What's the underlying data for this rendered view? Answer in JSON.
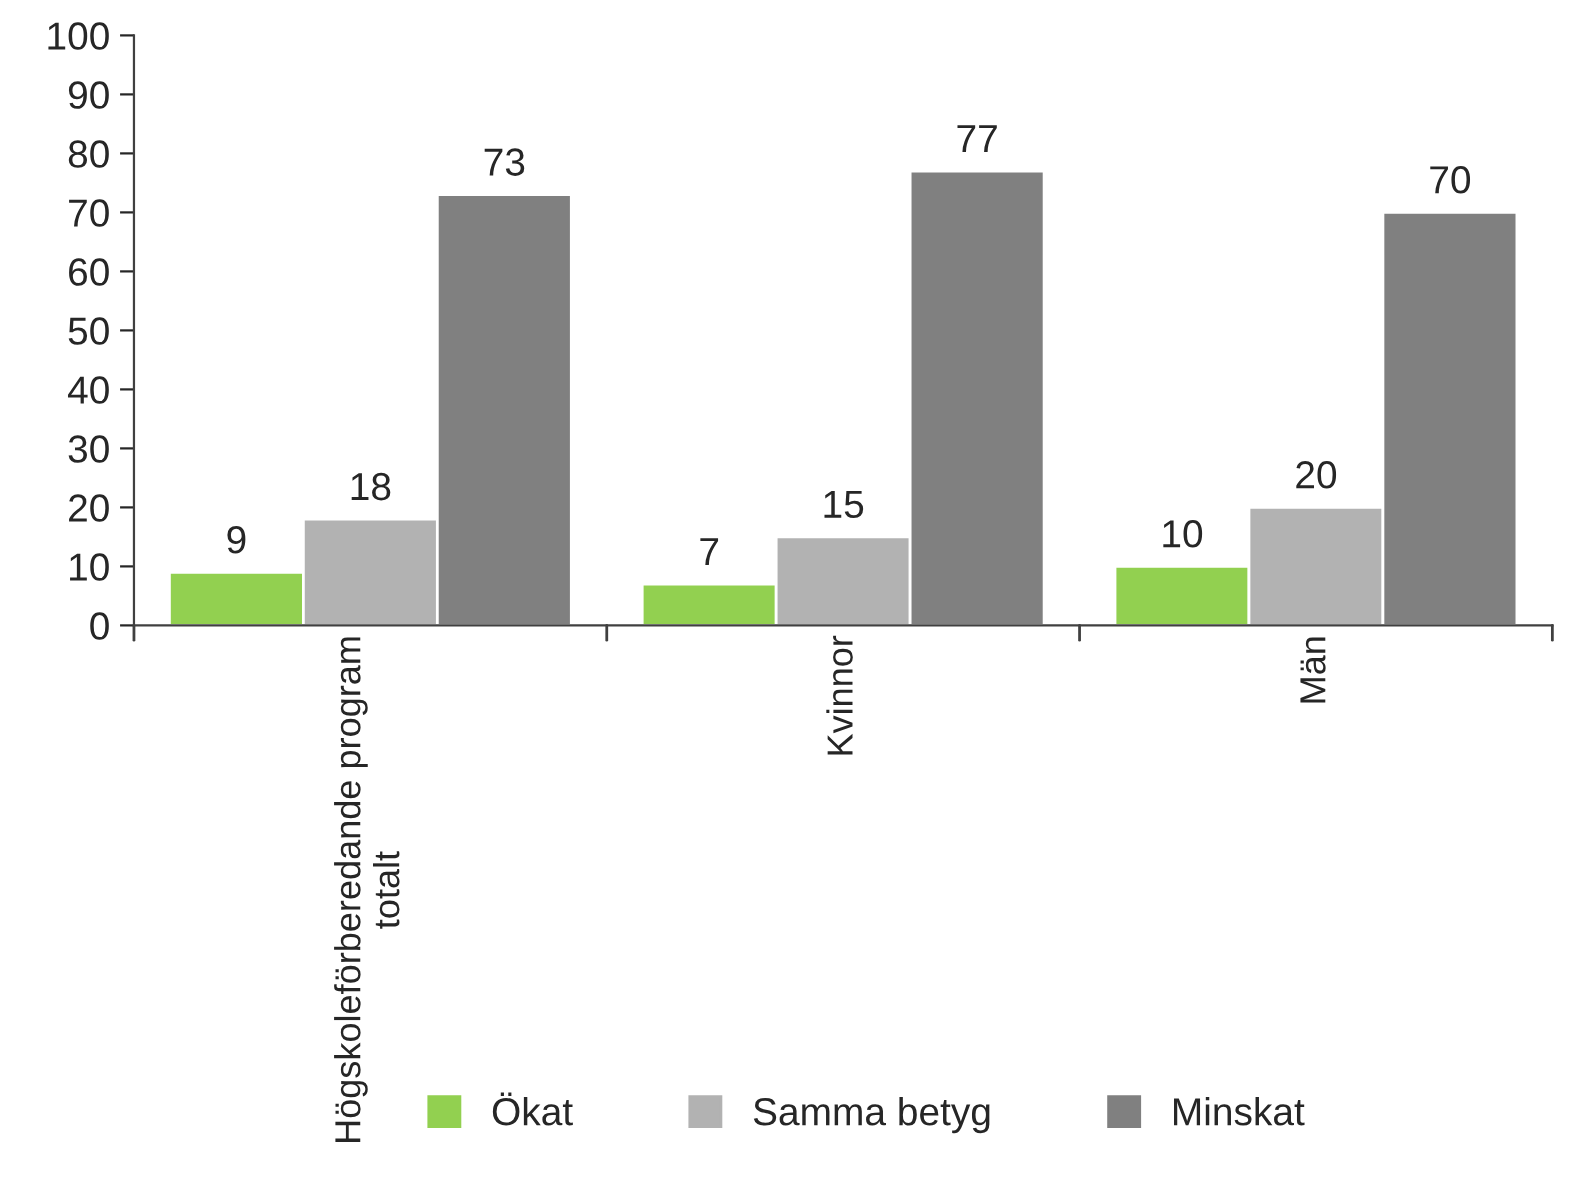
{
  "chart_data": {
    "type": "bar",
    "categories": [
      "Högskoleförberedande program totalt",
      "Kvinnor",
      "Män"
    ],
    "series": [
      {
        "name": "Ökat",
        "color": "#92d050",
        "values": [
          9,
          7,
          10
        ]
      },
      {
        "name": "Samma betyg",
        "color": "#b2b2b2",
        "values": [
          18,
          15,
          20
        ]
      },
      {
        "name": "Minskat",
        "color": "#808080",
        "values": [
          73,
          77,
          70
        ]
      }
    ],
    "ylim": [
      0,
      100
    ],
    "yticks": [
      0,
      10,
      20,
      30,
      40,
      50,
      60,
      70,
      80,
      90,
      100
    ],
    "data_labels": true,
    "legend": "bottom",
    "grid": false
  }
}
